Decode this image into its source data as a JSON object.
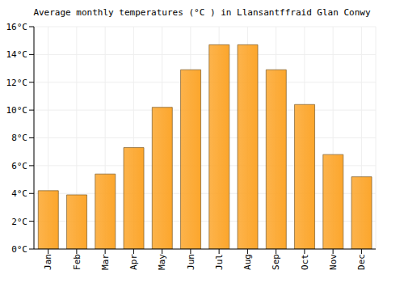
{
  "chart_data": {
    "type": "bar",
    "title": "Average monthly temperatures (°C ) in Llansantffraid Glan Conwy",
    "categories": [
      "Jan",
      "Feb",
      "Mar",
      "Apr",
      "May",
      "Jun",
      "Jul",
      "Aug",
      "Sep",
      "Oct",
      "Nov",
      "Dec"
    ],
    "values": [
      4.2,
      3.9,
      5.4,
      7.3,
      10.2,
      12.9,
      14.7,
      14.7,
      12.9,
      10.4,
      6.8,
      5.2
    ],
    "color": "#fca62c",
    "ylim": [
      0,
      16
    ],
    "yticks": [
      {
        "value": 0,
        "label": "0°C"
      },
      {
        "value": 2,
        "label": "2°C"
      },
      {
        "value": 4,
        "label": "4°C"
      },
      {
        "value": 6,
        "label": "6°C"
      },
      {
        "value": 8,
        "label": "8°C"
      },
      {
        "value": 10,
        "label": "10°C"
      },
      {
        "value": 12,
        "label": "12°C"
      },
      {
        "value": 14,
        "label": "14°C"
      },
      {
        "value": 16,
        "label": "16°C"
      }
    ],
    "grid": true
  }
}
